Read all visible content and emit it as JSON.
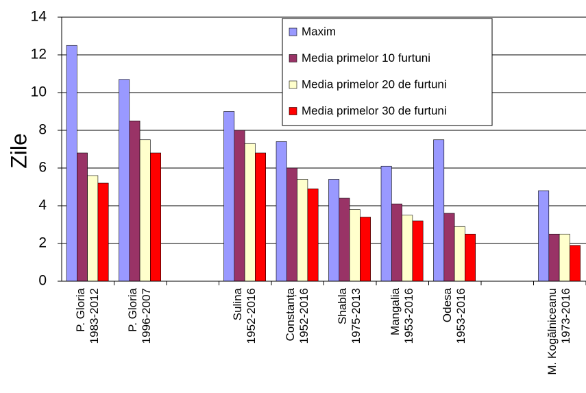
{
  "chart_data": {
    "type": "bar",
    "y_label": "Zile",
    "categories": [
      "P. Gloria\n1983-2012",
      "P. Gloria\n1996-2007",
      null,
      "Sulina\n1952-2016",
      "Constanța\n1952-2016",
      "Shabla\n1975-2013",
      "Mangalia\n1953-2016",
      "Odesa\n1953-2016",
      null,
      "M. Kogălniceanu\n1973-2016"
    ],
    "series": [
      {
        "name": "Maxim",
        "color": "#9999ff",
        "values": [
          12.5,
          10.7,
          null,
          9.0,
          7.4,
          5.4,
          6.1,
          7.5,
          null,
          4.8
        ]
      },
      {
        "name": "Media primelor 10 furtuni",
        "color": "#993366",
        "values": [
          6.8,
          8.5,
          null,
          8.0,
          6.0,
          4.4,
          4.1,
          3.6,
          null,
          2.5
        ]
      },
      {
        "name": "Media primelor 20 de furtuni",
        "color": "#ffffcc",
        "values": [
          5.6,
          7.5,
          null,
          7.3,
          5.4,
          3.8,
          3.5,
          2.9,
          null,
          2.5
        ]
      },
      {
        "name": "Media primelor 30 de furtuni",
        "color": "#ff0000",
        "values": [
          5.2,
          6.8,
          null,
          6.8,
          4.9,
          3.4,
          3.2,
          2.5,
          null,
          1.9
        ]
      }
    ],
    "ylim": [
      0,
      14
    ],
    "yticks": [
      0,
      2,
      4,
      6,
      8,
      10,
      12,
      14
    ],
    "grid": true,
    "legend": "top-right"
  }
}
